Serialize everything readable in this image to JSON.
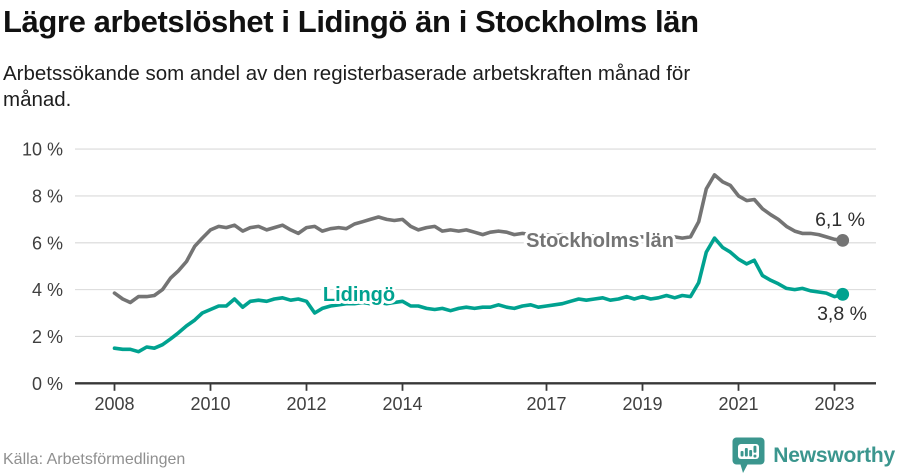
{
  "chart_data": {
    "type": "line",
    "title": "Lägre arbetslöshet i Lidingö än i Stockholms län",
    "subtitle_lines": [
      "Arbetssökande som andel av den registerbaserade arbetskraften månad för",
      "månad."
    ],
    "unit": "%",
    "grid": "horizontal",
    "legend": "inline-series-labels",
    "ylim": [
      0,
      10
    ],
    "xlim": [
      2007.2,
      2023.9
    ],
    "yticks": [
      0,
      2,
      4,
      6,
      8,
      10
    ],
    "ytick_labels": [
      "0 %",
      "2 %",
      "4 %",
      "6 %",
      "8 %",
      "10 %"
    ],
    "xticks": [
      2008,
      2010,
      2012,
      2014,
      2017,
      2019,
      2021,
      2023
    ],
    "xtick_labels": [
      "2008",
      "2010",
      "2012",
      "2014",
      "2017",
      "2019",
      "2021",
      "2023"
    ],
    "x": [
      2008,
      2008.17,
      2008.33,
      2008.5,
      2008.67,
      2008.83,
      2009,
      2009.17,
      2009.33,
      2009.5,
      2009.67,
      2009.83,
      2010,
      2010.17,
      2010.33,
      2010.5,
      2010.67,
      2010.83,
      2011,
      2011.17,
      2011.33,
      2011.5,
      2011.67,
      2011.83,
      2012,
      2012.17,
      2012.33,
      2012.5,
      2012.67,
      2012.83,
      2013,
      2013.17,
      2013.33,
      2013.5,
      2013.67,
      2013.83,
      2014,
      2014.17,
      2014.33,
      2014.5,
      2014.67,
      2014.83,
      2015,
      2015.17,
      2015.33,
      2015.5,
      2015.67,
      2015.83,
      2016,
      2016.17,
      2016.33,
      2016.5,
      2016.67,
      2016.83,
      2017,
      2017.17,
      2017.33,
      2017.5,
      2017.67,
      2017.83,
      2018,
      2018.17,
      2018.33,
      2018.5,
      2018.67,
      2018.83,
      2019,
      2019.17,
      2019.33,
      2019.5,
      2019.67,
      2019.83,
      2020,
      2020.17,
      2020.33,
      2020.5,
      2020.67,
      2020.83,
      2021,
      2021.17,
      2021.33,
      2021.5,
      2021.67,
      2021.83,
      2022,
      2022.17,
      2022.33,
      2022.5,
      2022.67,
      2022.83,
      2023,
      2023.17
    ],
    "series": [
      {
        "name": "Stockholms län",
        "color": "#747474",
        "end_value_label": "6,1 %",
        "end_value": 6.1,
        "values": [
          3.85,
          3.6,
          3.45,
          3.7,
          3.7,
          3.75,
          4.0,
          4.5,
          4.8,
          5.2,
          5.85,
          6.2,
          6.55,
          6.7,
          6.65,
          6.75,
          6.5,
          6.65,
          6.7,
          6.55,
          6.65,
          6.75,
          6.55,
          6.4,
          6.65,
          6.7,
          6.5,
          6.6,
          6.65,
          6.6,
          6.8,
          6.9,
          7.0,
          7.1,
          7.0,
          6.95,
          7.0,
          6.7,
          6.55,
          6.65,
          6.7,
          6.5,
          6.55,
          6.5,
          6.55,
          6.45,
          6.35,
          6.45,
          6.5,
          6.45,
          6.35,
          6.4,
          6.35,
          6.3,
          6.35,
          6.3,
          6.35,
          6.3,
          6.25,
          6.3,
          6.3,
          6.25,
          6.3,
          6.25,
          6.2,
          6.25,
          6.25,
          6.2,
          6.25,
          6.3,
          6.25,
          6.2,
          6.25,
          6.9,
          8.3,
          8.9,
          8.6,
          8.45,
          8.0,
          7.8,
          7.85,
          7.45,
          7.2,
          7.0,
          6.7,
          6.5,
          6.4,
          6.4,
          6.35,
          6.25,
          6.15,
          6.1
        ]
      },
      {
        "name": "Lidingö",
        "color": "#00a290",
        "end_value_label": "3,8 %",
        "end_value": 3.8,
        "values": [
          1.5,
          1.45,
          1.45,
          1.35,
          1.55,
          1.5,
          1.65,
          1.9,
          2.15,
          2.45,
          2.7,
          3.0,
          3.15,
          3.3,
          3.3,
          3.6,
          3.25,
          3.5,
          3.55,
          3.5,
          3.6,
          3.65,
          3.55,
          3.6,
          3.5,
          3.0,
          3.2,
          3.3,
          3.35,
          3.4,
          3.4,
          3.45,
          3.4,
          3.45,
          3.4,
          3.45,
          3.5,
          3.3,
          3.3,
          3.2,
          3.15,
          3.2,
          3.1,
          3.2,
          3.25,
          3.2,
          3.25,
          3.25,
          3.35,
          3.25,
          3.2,
          3.3,
          3.35,
          3.25,
          3.3,
          3.35,
          3.4,
          3.5,
          3.6,
          3.55,
          3.6,
          3.65,
          3.55,
          3.6,
          3.7,
          3.6,
          3.7,
          3.6,
          3.65,
          3.75,
          3.65,
          3.75,
          3.7,
          4.3,
          5.6,
          6.2,
          5.8,
          5.6,
          5.3,
          5.1,
          5.25,
          4.6,
          4.4,
          4.25,
          4.05,
          4.0,
          4.05,
          3.95,
          3.9,
          3.85,
          3.7,
          3.8
        ]
      }
    ]
  },
  "footer": {
    "source": "Källa: Arbetsförmedlingen",
    "brand": "Newsworthy",
    "brand_color": "#3b968e"
  }
}
